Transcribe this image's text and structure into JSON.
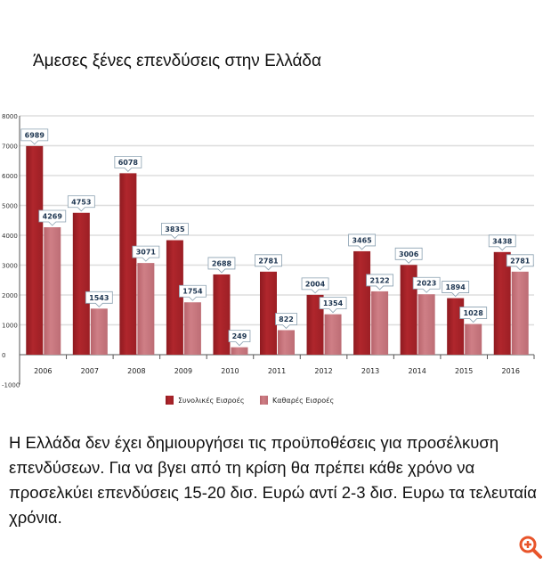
{
  "title": "Άμεσες ξένες επενδύσεις στην Ελλάδα",
  "caption": "Η Ελλάδα δεν έχει δημιουργήσει τις προϋποθέσεις για προσέλκυση επενδύσεων.  Για να βγει από τη κρίση θα πρέπει κάθε χρόνο να προσελκύει επενδύσεις 15-20 δισ. Ευρώ αντί 2-3 δισ. Ευρω τα τελευταία χρόνια.",
  "zoom_icon": "zoom-in-magnifier-icon",
  "colors": {
    "total": "#b0262c",
    "net": "#cf7f86",
    "grid": "#dddddd",
    "accent": "#e8542a"
  },
  "chart_data": {
    "type": "bar",
    "categories": [
      "2006",
      "2007",
      "2008",
      "2009",
      "2010",
      "2011",
      "2012",
      "2013",
      "2014",
      "2015",
      "2016"
    ],
    "series": [
      {
        "name": "Συνολικές Εισροές",
        "values": [
          6989,
          4753,
          6078,
          3835,
          2688,
          2781,
          2004,
          3465,
          3006,
          1894,
          3438
        ]
      },
      {
        "name": "Καθαρές Εισροές",
        "values": [
          4269,
          1543,
          3071,
          1754,
          249,
          822,
          1354,
          2122,
          2023,
          1028,
          2781
        ]
      }
    ],
    "ylim": [
      -1000,
      8000
    ],
    "yticks": [
      -1000,
      0,
      1000,
      2000,
      3000,
      4000,
      5000,
      6000,
      7000,
      8000
    ],
    "grid": true,
    "legend": "bottom",
    "data_labels": true
  }
}
